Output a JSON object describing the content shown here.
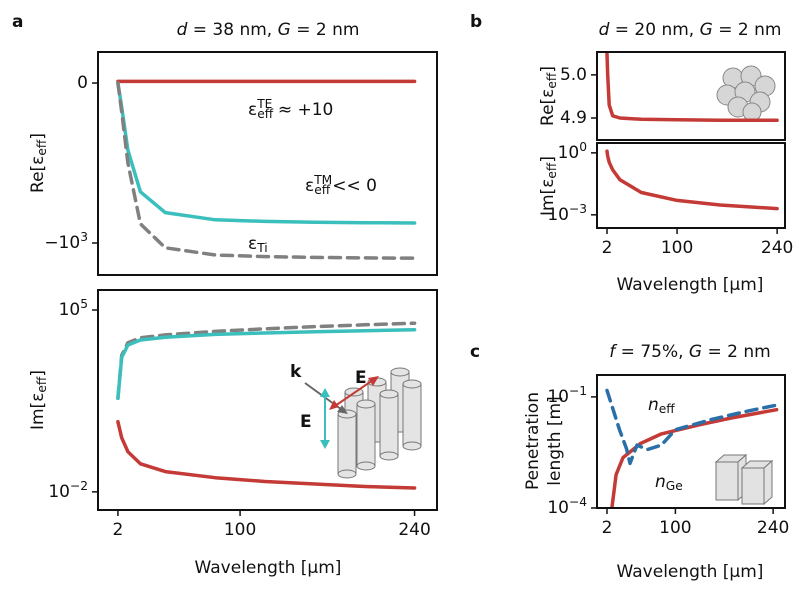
{
  "panel_labels": [
    "a",
    "b",
    "c"
  ],
  "inset_labels": [
    "k",
    "E",
    "E"
  ],
  "chart_data": [
    {
      "type": "line",
      "title": [
        {
          "i": "d"
        },
        " = 38 nm, ",
        {
          "i": "G"
        },
        " = 2 nm"
      ],
      "ylabel": [
        [
          "Re[ε",
          {
            "sub": "eff"
          },
          "]"
        ]
      ],
      "yscale": "linear",
      "xlim": [
        -14,
        258
      ],
      "ylim": [
        -1200,
        194
      ],
      "yticks": [
        0,
        {
          "value": -1000,
          "label": [
            "−10",
            {
              "sup": "3"
            }
          ]
        }
      ],
      "x": [
        2,
        5,
        10,
        20,
        40,
        80,
        120,
        160,
        200,
        240
      ],
      "series": [
        {
          "name": [
            "ε",
            {
              "sub": "eff"
            },
            {
              "sup": "TE"
            },
            " ≈ +10"
          ],
          "color": "#c43a36",
          "dash": false,
          "values": [
            10,
            10,
            10,
            10,
            10,
            10,
            10,
            10,
            10,
            10
          ]
        },
        {
          "name": [
            "ε",
            {
              "sub": "eff"
            },
            {
              "sup": "TM"
            },
            "<< 0"
          ],
          "color": "#3bbfbd",
          "dash": false,
          "values": [
            0,
            -150,
            -420,
            -680,
            -810,
            -855,
            -865,
            -870,
            -873,
            -875
          ]
        },
        {
          "name": [
            "ε",
            {
              "sub": "Ti"
            }
          ],
          "color": "#808080",
          "dash": true,
          "values": [
            0,
            -180,
            -500,
            -880,
            -1030,
            -1075,
            -1085,
            -1090,
            -1093,
            -1095
          ]
        }
      ]
    },
    {
      "type": "line",
      "xlabel": "Wavelength [μm]",
      "ylabel": [
        [
          "Im[ε",
          {
            "sub": "eff"
          },
          "]"
        ]
      ],
      "yscale": "log",
      "xlim": [
        -14,
        258
      ],
      "ylim": [
        0.002,
        590000
      ],
      "xticks": [
        2,
        100,
        240
      ],
      "yticks": [
        {
          "value": 100000,
          "label": [
            "10",
            {
              "sup": "5"
            }
          ]
        },
        {
          "value": 0.01,
          "label": [
            "10",
            {
              "sup": "−2"
            }
          ]
        }
      ],
      "x": [
        2,
        5,
        10,
        20,
        40,
        80,
        120,
        160,
        200,
        240
      ],
      "series": [
        {
          "color": "#808080",
          "dash": true,
          "values": [
            40,
            1800,
            5500,
            8500,
            11000,
            15000,
            19000,
            23000,
            27000,
            31000
          ]
        },
        {
          "color": "#3bbfbd",
          "dash": false,
          "values": [
            40,
            1500,
            4500,
            7000,
            9000,
            11500,
            13000,
            14500,
            16000,
            17500
          ]
        },
        {
          "color": "#c43a36",
          "dash": false,
          "values": [
            5,
            1.2,
            0.35,
            0.12,
            0.06,
            0.035,
            0.025,
            0.02,
            0.016,
            0.014
          ]
        }
      ]
    },
    {
      "type": "line",
      "title": [
        {
          "i": "d"
        },
        " = 20 nm, ",
        {
          "i": "G"
        },
        " = 2 nm"
      ],
      "ylabel": [
        [
          "Re[ε",
          {
            "sub": "eff"
          },
          "]"
        ]
      ],
      "yscale": "linear",
      "xlim": [
        -12,
        251
      ],
      "ylim": [
        4.849,
        5.053
      ],
      "yticks": [
        {
          "value": 5,
          "label": "5.0"
        },
        4.9
      ],
      "x": [
        2,
        3,
        5,
        10,
        20,
        50,
        100,
        160,
        240
      ],
      "series": [
        {
          "color": "#c43a36",
          "dash": false,
          "values": [
            5.05,
            5.0,
            4.93,
            4.905,
            4.9,
            4.897,
            4.896,
            4.895,
            4.895
          ]
        }
      ]
    },
    {
      "type": "line",
      "xlabel": "Wavelength [μm]",
      "ylabel": [
        [
          "Im[ε",
          {
            "sub": "eff"
          },
          "]"
        ]
      ],
      "yscale": "log",
      "xlim": [
        -12,
        251
      ],
      "ylim": [
        0.00023,
        3.0
      ],
      "xticks": [
        2,
        100,
        240
      ],
      "yticks": [
        {
          "value": 1,
          "label": [
            "10",
            {
              "sup": "0"
            }
          ]
        },
        {
          "value": 0.001,
          "label": [
            "10",
            {
              "sup": "−3"
            }
          ]
        }
      ],
      "x": [
        2,
        3,
        5,
        10,
        20,
        50,
        100,
        160,
        240
      ],
      "series": [
        {
          "color": "#c43a36",
          "dash": false,
          "values": [
            1.2,
            0.7,
            0.35,
            0.15,
            0.05,
            0.012,
            0.005,
            0.003,
            0.002
          ]
        }
      ]
    },
    {
      "type": "line",
      "title": [
        {
          "i": "f"
        },
        " = 75%, ",
        {
          "i": "G"
        },
        " = 2 nm"
      ],
      "xlabel": "Wavelength [μm]",
      "ylabel": [
        [
          "Penetration"
        ],
        [
          "length [m]"
        ]
      ],
      "yscale": "log",
      "xlim": [
        -12.3,
        257
      ],
      "ylim": [
        0.0001,
        0.39
      ],
      "xticks": [
        2,
        100,
        240
      ],
      "yticks": [
        {
          "value": 0.1,
          "label": [
            "10",
            {
              "sup": "−1"
            }
          ]
        },
        {
          "value": 0.0001,
          "label": [
            "10",
            {
              "sup": "−4"
            }
          ]
        }
      ],
      "series": [
        {
          "name": [
            {
              "i": "n"
            },
            {
              "sub": "eff"
            }
          ],
          "color": "#c43a36",
          "dash": false,
          "x": [
            9,
            15,
            25,
            50,
            80,
            136,
            180,
            245
          ],
          "values": [
            0.0001,
            0.0008,
            0.0023,
            0.0055,
            0.01,
            0.018,
            0.027,
            0.045
          ]
        },
        {
          "name": [
            {
              "i": "n"
            },
            {
              "sub": "Ge"
            }
          ],
          "color": "#2a6fa8",
          "dash": true,
          "x": [
            2,
            10,
            20,
            30,
            35,
            45,
            60,
            80,
            100,
            150,
            200,
            245
          ],
          "values": [
            0.15,
            0.05,
            0.013,
            0.004,
            0.0016,
            0.005,
            0.0038,
            0.005,
            0.013,
            0.024,
            0.04,
            0.06
          ]
        }
      ]
    }
  ]
}
